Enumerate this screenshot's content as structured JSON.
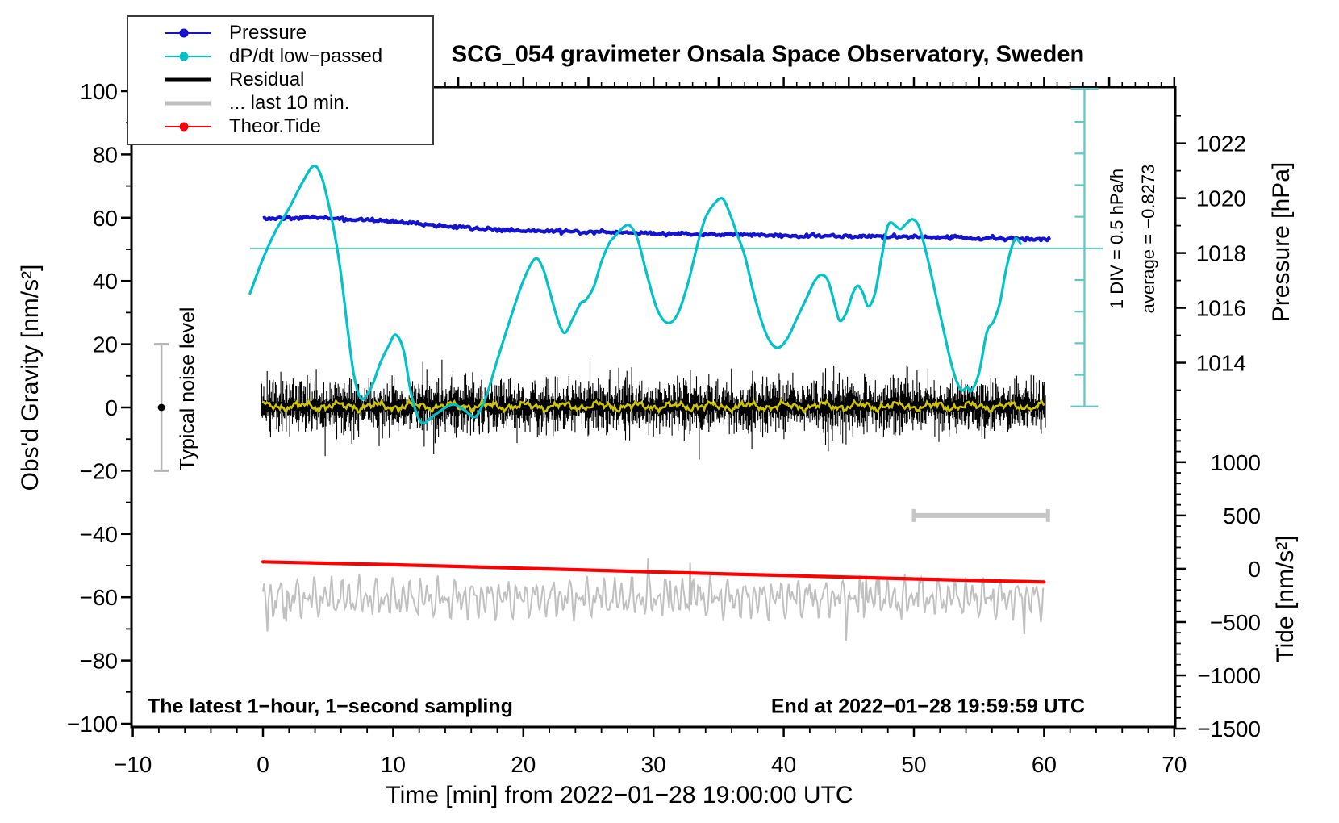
{
  "title": "SCG_054 gravimeter Onsala Space Observatory, Sweden",
  "legend": {
    "items": [
      {
        "label": "Pressure",
        "color": "#1414d0",
        "style": "line-dot",
        "thickness": 2.5
      },
      {
        "label": "dP/dt low−passed",
        "color": "#00c2c8",
        "style": "line-dot",
        "thickness": 2.5
      },
      {
        "label": "Residual",
        "color": "#000000",
        "style": "line",
        "thickness": 5.5
      },
      {
        "label": "... last 10 min.",
        "color": "#c0c0c0",
        "style": "line",
        "thickness": 5.5
      },
      {
        "label": "Theor.Tide",
        "color": "#fb0202",
        "style": "line-dot",
        "thickness": 2.5
      }
    ]
  },
  "axes": {
    "x": {
      "label": "Time [min] from 2022−01−28 19:00:00 UTC",
      "min": -10,
      "max": 70,
      "minor_step": 2,
      "top_minor_step": 1,
      "top_major_step": 5,
      "ticks": [
        {
          "v": -10,
          "label": "−10"
        },
        {
          "v": 0,
          "label": "0"
        },
        {
          "v": 10,
          "label": "10"
        },
        {
          "v": 20,
          "label": "20"
        },
        {
          "v": 30,
          "label": "30"
        },
        {
          "v": 40,
          "label": "40"
        },
        {
          "v": 50,
          "label": "50"
        },
        {
          "v": 60,
          "label": "60"
        },
        {
          "v": 70,
          "label": "70"
        }
      ]
    },
    "y_left": {
      "label": "Obs'd Gravity [nm/s²]",
      "min": -100,
      "max": 100,
      "minor_step": 10,
      "ticks": [
        {
          "v": 100,
          "label": "100"
        },
        {
          "v": 80,
          "label": "80"
        },
        {
          "v": 60,
          "label": "60"
        },
        {
          "v": 40,
          "label": "40"
        },
        {
          "v": 20,
          "label": "20"
        },
        {
          "v": 0,
          "label": "0"
        },
        {
          "v": -20,
          "label": "−20"
        },
        {
          "v": -40,
          "label": "−40"
        },
        {
          "v": -60,
          "label": "−60"
        },
        {
          "v": -80,
          "label": "−80"
        },
        {
          "v": -100,
          "label": "−100"
        }
      ]
    },
    "y_right_pressure": {
      "label": "Pressure [hPa]",
      "minor_min": 1013,
      "minor_max": 1023,
      "minor_step": 1,
      "ticks": [
        {
          "v": 1022,
          "label": "1022"
        },
        {
          "v": 1020,
          "label": "1020"
        },
        {
          "v": 1018,
          "label": "1018"
        },
        {
          "v": 1016,
          "label": "1016"
        },
        {
          "v": 1014,
          "label": "1014"
        }
      ]
    },
    "y_right_tide": {
      "label": "Tide [nm/s²]",
      "minor_min": -1500,
      "minor_max": 1400,
      "minor_step": 100,
      "ticks": [
        {
          "v": 1000,
          "label": "1000"
        },
        {
          "v": 500,
          "label": "500"
        },
        {
          "v": 0,
          "label": "0"
        },
        {
          "v": -500,
          "label": "−500"
        },
        {
          "v": -1000,
          "label": "−1000"
        },
        {
          "v": -1500,
          "label": "−1500"
        }
      ]
    }
  },
  "annotations": {
    "noise_bar_label": "Typical noise level",
    "div_label": "1 DIV = 0.5 hPa/h",
    "average_label": "average = −0.8273",
    "bottom_left": "The latest 1−hour, 1−second sampling",
    "bottom_right": "End at 2022−01−28 19:59:59 UTC"
  },
  "chart_data": {
    "type": "line",
    "xlabel": "Time [min] from 2022-01-28 19:00:00 UTC",
    "x_range": [
      -10,
      70
    ],
    "gravity_range": [
      -100,
      100
    ],
    "grid": false,
    "legend_position": "top-left",
    "pressure_axis": {
      "ref_hPa": 1018.17,
      "ref_gravity": 50.3,
      "gravity_per_hPa": 8.67
    },
    "tide_axis": {
      "ref_value": 0,
      "ref_gravity": -51.0,
      "gravity_per_unit": 0.0337
    },
    "dpdt_axis": {
      "ref_value": 0,
      "ref_gravity": 50.3,
      "gravity_per_unit": 20.4,
      "div_hPa_per_h": 0.5,
      "divisions_each_side": 5
    },
    "series": [
      {
        "name": "Pressure",
        "units": "hPa",
        "color": "#1414d0",
        "x": [
          0,
          2,
          4,
          5,
          6,
          8,
          10,
          12,
          14,
          16,
          18,
          20,
          22,
          24,
          26,
          28,
          30,
          32,
          34,
          36,
          38,
          40,
          42,
          44,
          46,
          47,
          48,
          50,
          52,
          54,
          55,
          56,
          57,
          58,
          59,
          60.5
        ],
        "values": [
          1019.25,
          1019.26,
          1019.3,
          1019.28,
          1019.25,
          1019.22,
          1019.15,
          1019.06,
          1018.97,
          1018.9,
          1018.85,
          1018.82,
          1018.8,
          1018.78,
          1018.77,
          1018.74,
          1018.72,
          1018.7,
          1018.68,
          1018.67,
          1018.65,
          1018.63,
          1018.62,
          1018.61,
          1018.6,
          1018.62,
          1018.6,
          1018.6,
          1018.58,
          1018.55,
          1018.53,
          1018.54,
          1018.5,
          1018.53,
          1018.51,
          1018.51
        ]
      },
      {
        "name": "dP/dt low-passed",
        "units": "hPa/h",
        "color": "#00c2c8",
        "x": [
          -1,
          0,
          1,
          2,
          3,
          3.9,
          4.5,
          5,
          5.5,
          6,
          6.5,
          7,
          7.5,
          8,
          8.5,
          9,
          9.7,
          10.2,
          10.8,
          11.3,
          11.8,
          12.3,
          13,
          14,
          14.7,
          15.5,
          16.3,
          17,
          17.5,
          18,
          19,
          20,
          20.9,
          21.5,
          22,
          22.7,
          23.2,
          23.8,
          24.4,
          24.8,
          25.4,
          26,
          26.6,
          27,
          27.7,
          28.2,
          28.8,
          29.5,
          30.2,
          30.8,
          31.4,
          32,
          32.7,
          33.4,
          34,
          34.7,
          35.3,
          35.8,
          36.4,
          37,
          37.7,
          38.4,
          39,
          39.6,
          40.3,
          41,
          41.8,
          42.4,
          42.9,
          43.4,
          43.9,
          44.3,
          44.8,
          45.3,
          45.7,
          46.1,
          46.5,
          47,
          47.5,
          47.9,
          48.2,
          48.7,
          49,
          49.4,
          49.9,
          50.4,
          51,
          51.6,
          52.2,
          52.8,
          53.3,
          53.7,
          54.1,
          54.4,
          55,
          55.6,
          56.1,
          56.6,
          57,
          57.4,
          57.8,
          58.2
        ],
        "values": [
          -0.7,
          -0.16,
          0.28,
          0.62,
          1.01,
          1.28,
          1.11,
          0.72,
          0.23,
          -0.41,
          -1.24,
          -1.98,
          -2.32,
          -2.27,
          -2.07,
          -1.78,
          -1.49,
          -1.34,
          -1.58,
          -2.17,
          -2.56,
          -2.71,
          -2.61,
          -2.47,
          -2.42,
          -2.51,
          -2.61,
          -2.37,
          -2.07,
          -1.73,
          -1.09,
          -0.5,
          -0.16,
          -0.31,
          -0.65,
          -1.14,
          -1.31,
          -1.09,
          -0.85,
          -0.8,
          -0.6,
          -0.21,
          0.08,
          0.18,
          0.33,
          0.35,
          0.13,
          -0.41,
          -0.9,
          -1.12,
          -1.14,
          -0.95,
          -0.5,
          0.08,
          0.48,
          0.7,
          0.77,
          0.57,
          0.23,
          -0.11,
          -0.7,
          -1.19,
          -1.46,
          -1.54,
          -1.39,
          -1.09,
          -0.75,
          -0.5,
          -0.41,
          -0.5,
          -0.85,
          -1.12,
          -1.0,
          -0.7,
          -0.58,
          -0.7,
          -0.9,
          -0.7,
          -0.16,
          0.28,
          0.4,
          0.33,
          0.3,
          0.38,
          0.45,
          0.33,
          -0.11,
          -0.65,
          -1.19,
          -1.73,
          -2.07,
          -2.2,
          -2.15,
          -2.21,
          -1.93,
          -1.3,
          -1.14,
          -0.85,
          -0.41,
          -0.06,
          0.15,
          0.07
        ],
        "average": -0.8273
      },
      {
        "name": "Residual",
        "units": "nm/s2",
        "color": "#000000",
        "x_start": 0,
        "x_end": 60.1,
        "mean_gravity": 0.35,
        "typical_amplitude": 8,
        "max_spike": 17
      },
      {
        "name": "Residual smoothed",
        "units": "nm/s2",
        "color": "#cfc400",
        "x_start": 0,
        "x_end": 60.1,
        "mean_gravity": 0.4,
        "typical_amplitude": 1.5
      },
      {
        "name": "... last 10 min.",
        "units": "nm/s2",
        "color": "#c0c0c0",
        "x_start": 0,
        "x_end": 60,
        "mean_gravity": -60.3,
        "typical_amplitude": 7,
        "max_spike": 16
      },
      {
        "name": "Theor.Tide",
        "units": "nm/s2 (tide axis)",
        "color": "#fb0202",
        "x": [
          0,
          5,
          10,
          15,
          20,
          25,
          30,
          35,
          40,
          45,
          50,
          55,
          60
        ],
        "values": [
          65,
          52,
          38,
          22,
          5,
          -12,
          -30,
          -47,
          -63,
          -79,
          -95,
          -110,
          -124
        ]
      }
    ],
    "markers": {
      "noise_bar": {
        "x_min": -7.8,
        "center_gravity": 0,
        "half_range": 20
      },
      "dpdt_zero_line": {
        "gravity": 50.3,
        "x_start": -1,
        "x_end": 64.5
      },
      "dpdt_scale_bar": {
        "x_min": 63.1,
        "center_gravity": 50.3
      },
      "last10_window_bar": {
        "x_start": 50,
        "x_end": 60.3,
        "tide_value": 500
      }
    }
  }
}
